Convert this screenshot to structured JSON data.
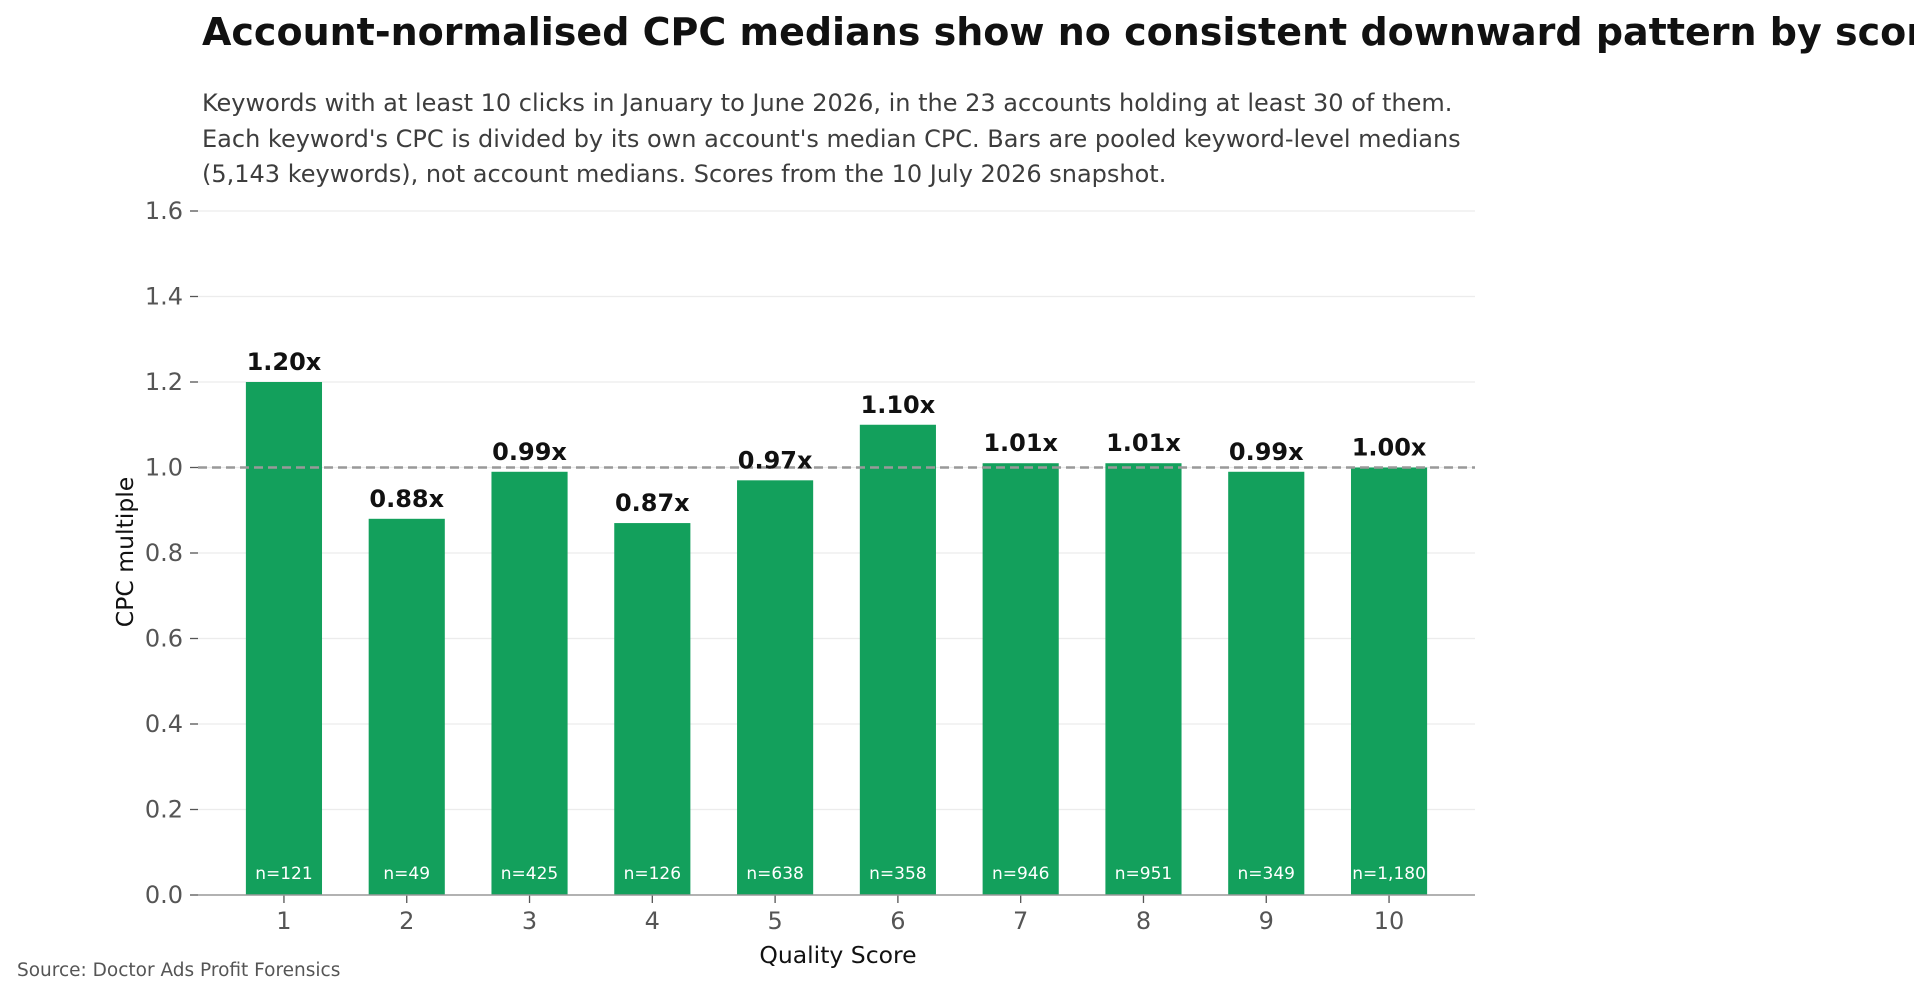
{
  "chart_data": {
    "type": "bar",
    "title": "Account-normalised CPC medians show no consistent downward pattern by score",
    "subtitle": "Keywords with at least 10 clicks in January to June 2026, in the 23 accounts holding at least 30 of them. Each keyword's CPC is divided by its own account's median CPC. Bars are pooled keyword-level medians (5,143 keywords), not account medians. Scores from the 10 July 2026 snapshot.",
    "xlabel": "Quality Score",
    "ylabel": "CPC multiple",
    "categories": [
      "1",
      "2",
      "3",
      "4",
      "5",
      "6",
      "7",
      "8",
      "9",
      "10"
    ],
    "values": [
      1.2,
      0.88,
      0.99,
      0.87,
      0.97,
      1.1,
      1.01,
      1.01,
      0.99,
      1.0
    ],
    "value_labels": [
      "1.20x",
      "0.88x",
      "0.99x",
      "0.87x",
      "0.97x",
      "1.10x",
      "1.01x",
      "1.01x",
      "0.99x",
      "1.00x"
    ],
    "n_labels": [
      "n=121",
      "n=49",
      "n=425",
      "n=126",
      "n=638",
      "n=358",
      "n=946",
      "n=951",
      "n=349",
      "n=1,180"
    ],
    "ylim": [
      0,
      1.6
    ],
    "yticks": [
      0.0,
      0.2,
      0.4,
      0.6,
      0.8,
      1.0,
      1.2,
      1.4,
      1.6
    ],
    "ytick_labels": [
      "0.0",
      "0.2",
      "0.4",
      "0.6",
      "0.8",
      "1.0",
      "1.2",
      "1.4",
      "1.6"
    ],
    "reference_line": 1.0,
    "grid": true,
    "legend": "none",
    "bar_color": "#13a05c",
    "reference_color": "#999999",
    "grid_color": "#ececec"
  },
  "source": "Source: Doctor Ads Profit Forensics"
}
